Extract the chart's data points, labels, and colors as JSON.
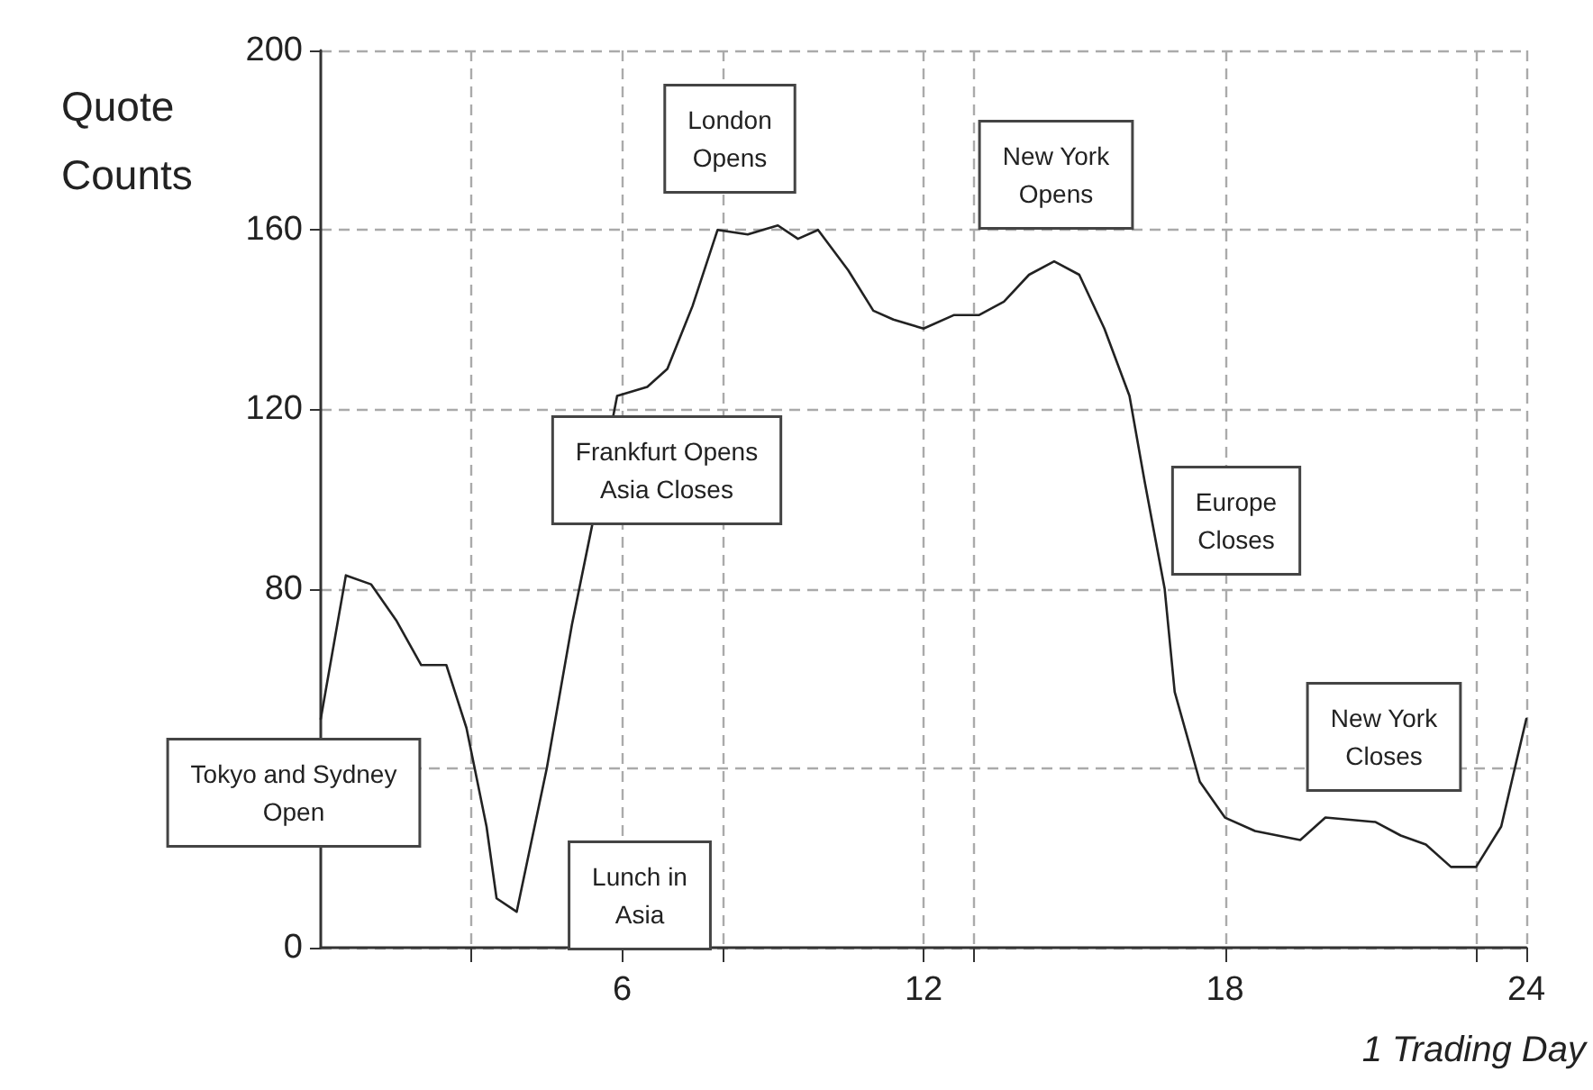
{
  "chart_data": {
    "type": "line",
    "ylabel": "Quote\nCounts",
    "xlabel": "1 Trading Day",
    "xlim": [
      0,
      24
    ],
    "xticks": [
      {
        "value": 3,
        "label": null
      },
      6,
      {
        "value": 8,
        "label": null
      },
      12,
      {
        "value": 13,
        "label": null
      },
      18,
      {
        "value": 23,
        "label": null
      },
      24
    ],
    "ylim": [
      0,
      200
    ],
    "yticks": [
      0,
      {
        "value": 40,
        "label": null
      },
      80,
      120,
      160,
      200
    ],
    "grid": true,
    "marker": "none",
    "line_style": "solid",
    "series": [
      {
        "color": "#222222",
        "x": [
          0,
          0.5,
          1,
          1.5,
          2,
          2.5,
          2.9,
          3.3,
          3.5,
          3.9,
          4.5,
          5,
          5.4,
          5.9,
          6.5,
          6.9,
          7.4,
          7.9,
          8.5,
          9.1,
          9.5,
          9.9,
          10.5,
          11,
          11.4,
          12,
          12.6,
          13.1,
          13.6,
          14.1,
          14.6,
          15.1,
          15.6,
          16.1,
          16.4,
          16.8,
          17,
          17.5,
          18,
          18.6,
          19.5,
          20,
          21,
          21.5,
          22,
          22.5,
          23,
          23.5,
          24
        ],
        "values": [
          51,
          83,
          81,
          73,
          63,
          63,
          49,
          27,
          11,
          8,
          40,
          72,
          94,
          123,
          125,
          129,
          143,
          160,
          159,
          161,
          158,
          160,
          151,
          142,
          140,
          138,
          141,
          141,
          144,
          150,
          153,
          150,
          138,
          123,
          104,
          80,
          57,
          37,
          29,
          26,
          24,
          29,
          28,
          25,
          23,
          18,
          18,
          27,
          51
        ]
      }
    ],
    "annotations": [
      "Tokyo and Sydney\nOpen",
      "Lunch in\nAsia",
      "Frankfurt Opens\nAsia Closes",
      "London\nOpens",
      "New York\nOpens",
      "Europe\nCloses",
      "New York\nCloses"
    ]
  }
}
